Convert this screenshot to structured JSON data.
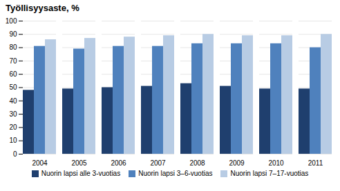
{
  "chart_data": {
    "type": "bar",
    "title": "Työllisyysaste, %",
    "categories": [
      "2004",
      "2005",
      "2006",
      "2007",
      "2008",
      "2009",
      "2010",
      "2011"
    ],
    "series": [
      {
        "name": "Nuorin lapsi alle 3-vuotias",
        "color": "#1f3f6e",
        "values": [
          48,
          49,
          50,
          51,
          53,
          51,
          49,
          49
        ]
      },
      {
        "name": "Nuorin lapsi 3–6-vuotias",
        "color": "#4f81bd",
        "values": [
          81,
          79,
          81,
          81,
          83,
          83,
          83,
          80
        ]
      },
      {
        "name": "Nuorin lapsi 7–17-vuotias",
        "color": "#b8cce4",
        "values": [
          86,
          87,
          88,
          89,
          90,
          89,
          89,
          90
        ]
      }
    ],
    "ylim": [
      0,
      100
    ],
    "yticks": [
      0,
      10,
      20,
      30,
      40,
      50,
      60,
      70,
      80,
      90,
      100
    ],
    "grid": true,
    "legend": "bottom"
  }
}
